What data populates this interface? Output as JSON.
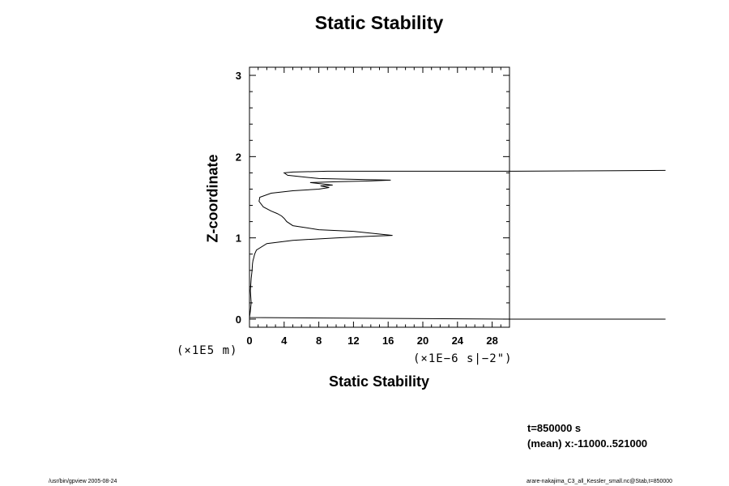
{
  "title": "Static Stability",
  "xlabel": "Static Stability",
  "ylabel": "Z-coordinate",
  "x_unit": "(×1E−6 s|−2\")",
  "y_unit": "(×1E5 m)",
  "info": {
    "time": "t=850000 s",
    "mean": "(mean) x:-11000..521000"
  },
  "footer": {
    "left": "/usr/bin/gpview 2005-08-24",
    "right": "arare-nakajima_C3_all_Kessler_small.nc@Stab,t=850000"
  },
  "chart_data": {
    "type": "line",
    "title": "Static Stability",
    "xlabel": "Static Stability",
    "ylabel": "Z-coordinate",
    "xlim": [
      0,
      30
    ],
    "ylim": [
      -0.1,
      3.1
    ],
    "xticks": [
      0,
      4,
      8,
      12,
      16,
      20,
      24,
      28
    ],
    "yticks": [
      0,
      1,
      2,
      3
    ],
    "grid": false,
    "series": [
      {
        "x": [
          48,
          30,
          0.0,
          0.1,
          0.2,
          0.1,
          0.2,
          0.3,
          0.35,
          0.4,
          0.5,
          0.6,
          0.8,
          2,
          5,
          10,
          14,
          16.5,
          12,
          8,
          5,
          4.3,
          4.0,
          3.7,
          3.2,
          2.5,
          1.6,
          1.1,
          1.2,
          2.5,
          5,
          8,
          9.2,
          8.2,
          9.6,
          7,
          10,
          14,
          16.3,
          12,
          8,
          4.4,
          4.0,
          5,
          9,
          20,
          30,
          48
        ],
        "y": [
          0.0,
          0.0,
          0.02,
          0.1,
          0.2,
          0.35,
          0.5,
          0.6,
          0.68,
          0.72,
          0.76,
          0.8,
          0.85,
          0.93,
          0.97,
          1.0,
          1.02,
          1.03,
          1.08,
          1.1,
          1.15,
          1.2,
          1.24,
          1.27,
          1.3,
          1.33,
          1.38,
          1.45,
          1.5,
          1.55,
          1.58,
          1.6,
          1.62,
          1.64,
          1.65,
          1.68,
          1.69,
          1.7,
          1.71,
          1.72,
          1.73,
          1.77,
          1.8,
          1.81,
          1.82,
          1.82,
          1.82,
          1.83
        ]
      }
    ]
  }
}
